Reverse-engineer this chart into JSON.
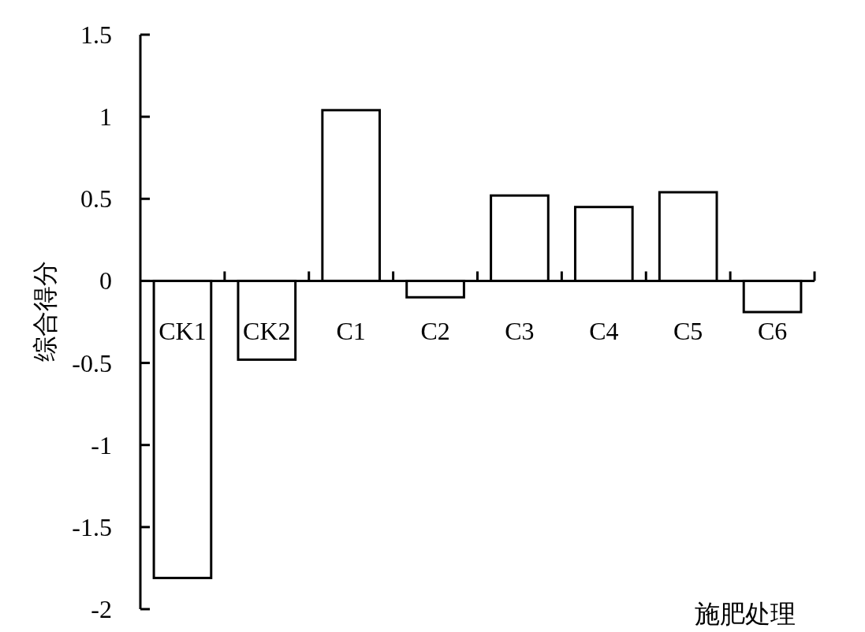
{
  "chart_data": {
    "type": "bar",
    "xlabel": "施肥处理",
    "ylabel": "综合得分",
    "categories": [
      "CK1",
      "CK2",
      "C1",
      "C2",
      "C3",
      "C4",
      "C5",
      "C6"
    ],
    "values": [
      -1.81,
      -0.48,
      1.04,
      -0.1,
      0.52,
      0.45,
      0.54,
      -0.19
    ],
    "color": "#ffffff",
    "ylim": [
      -2,
      1.5
    ],
    "yticks": [
      -2,
      -1.5,
      -1,
      -0.5,
      0,
      0.5,
      1,
      1.5
    ]
  }
}
